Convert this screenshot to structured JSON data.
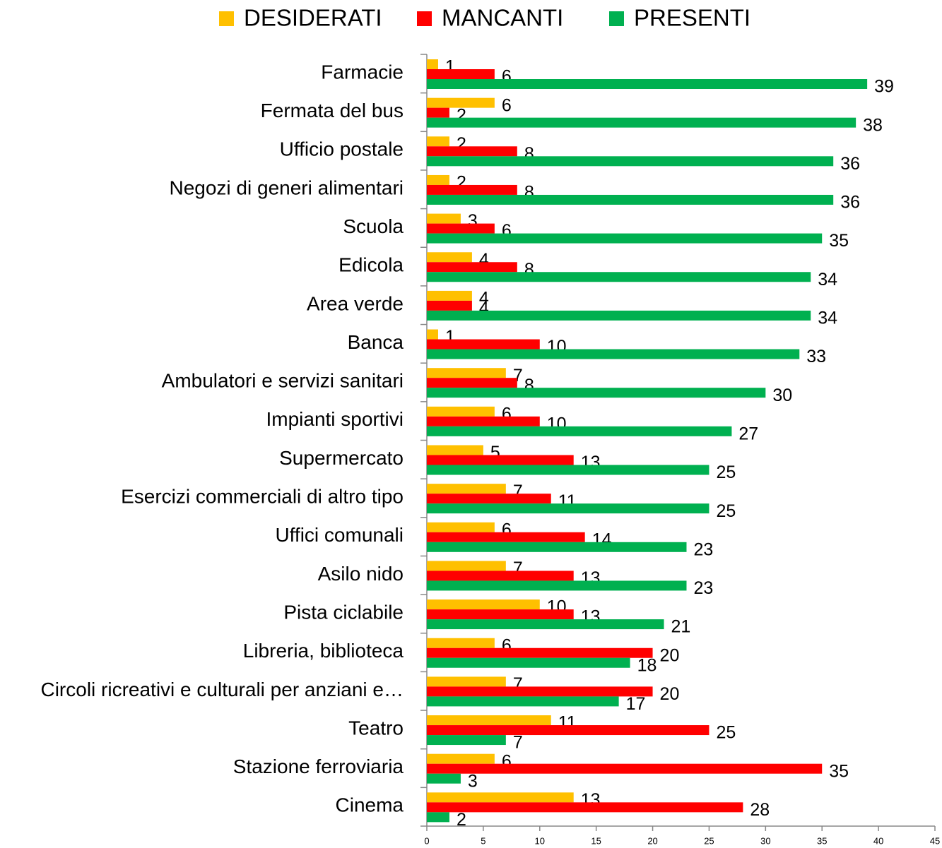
{
  "chart_data": {
    "type": "bar",
    "orientation": "horizontal",
    "categories": [
      "Farmacie",
      "Fermata del bus",
      "Ufficio postale",
      "Negozi di generi alimentari",
      "Scuola",
      "Edicola",
      "Area verde",
      "Banca",
      "Ambulatori e servizi sanitari",
      "Impianti sportivi",
      "Supermercato",
      "Esercizi commerciali di altro tipo",
      "Uffici comunali",
      "Asilo nido",
      "Pista ciclabile",
      "Libreria, biblioteca",
      "Circoli ricreativi e culturali per anziani e…",
      "Teatro",
      "Stazione ferroviaria",
      "Cinema"
    ],
    "series": [
      {
        "name": "DESIDERATI",
        "color": "#FFC000",
        "values": [
          1,
          6,
          2,
          2,
          3,
          4,
          4,
          1,
          7,
          6,
          5,
          7,
          6,
          7,
          10,
          6,
          7,
          11,
          6,
          13
        ]
      },
      {
        "name": "MANCANTI",
        "color": "#FF0000",
        "values": [
          6,
          2,
          8,
          8,
          6,
          8,
          4,
          10,
          8,
          10,
          13,
          11,
          14,
          13,
          13,
          20,
          20,
          25,
          35,
          28
        ]
      },
      {
        "name": "PRESENTI",
        "color": "#00B050",
        "values": [
          39,
          38,
          36,
          36,
          35,
          34,
          34,
          33,
          30,
          27,
          25,
          25,
          23,
          23,
          21,
          18,
          17,
          7,
          3,
          2
        ]
      }
    ],
    "xlim": [
      0,
      45
    ],
    "xticks": [
      0,
      5,
      10,
      15,
      20,
      25,
      30,
      35,
      40,
      45
    ],
    "legend": "top",
    "grid": false
  }
}
